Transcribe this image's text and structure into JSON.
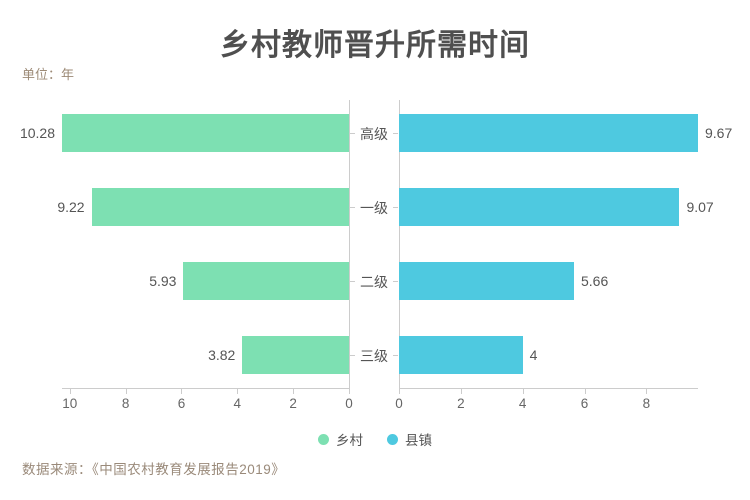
{
  "title": "乡村教师晋升所需时间",
  "unit_label": "单位：年",
  "source": "数据来源：《中国农村教育发展报告2019》",
  "legend": [
    {
      "label": "乡村",
      "color": "#7de0b2"
    },
    {
      "label": "县镇",
      "color": "#4ec9e0"
    }
  ],
  "chart_data": {
    "type": "bar",
    "subtype": "horizontal-diverging",
    "title": "乡村教师晋升所需时间",
    "unit": "年",
    "categories": [
      "高级",
      "一级",
      "二级",
      "三级"
    ],
    "series": [
      {
        "name": "乡村",
        "side": "left",
        "color": "#7de0b2",
        "values": [
          10.28,
          9.22,
          5.93,
          3.82
        ],
        "value_labels": [
          "10.28",
          "9.22",
          "5.93",
          "3.82"
        ],
        "axis_ticks": [
          10,
          8,
          6,
          4,
          2,
          0
        ],
        "axis_tick_labels": [
          "10",
          "8",
          "6",
          "4",
          "2",
          "0"
        ],
        "axis_max": 10.28,
        "axis_reversed": true
      },
      {
        "name": "县镇",
        "side": "right",
        "color": "#4ec9e0",
        "values": [
          9.67,
          9.07,
          5.66,
          4
        ],
        "value_labels": [
          "9.67",
          "9.07",
          "5.66",
          "4"
        ],
        "axis_ticks": [
          0,
          2,
          4,
          6,
          8
        ],
        "axis_tick_labels": [
          "0",
          "2",
          "4",
          "6",
          "8"
        ],
        "axis_max": 9.67,
        "axis_reversed": false
      }
    ],
    "grid": false,
    "legend_position": "bottom-center",
    "value_labels_shown": true
  }
}
